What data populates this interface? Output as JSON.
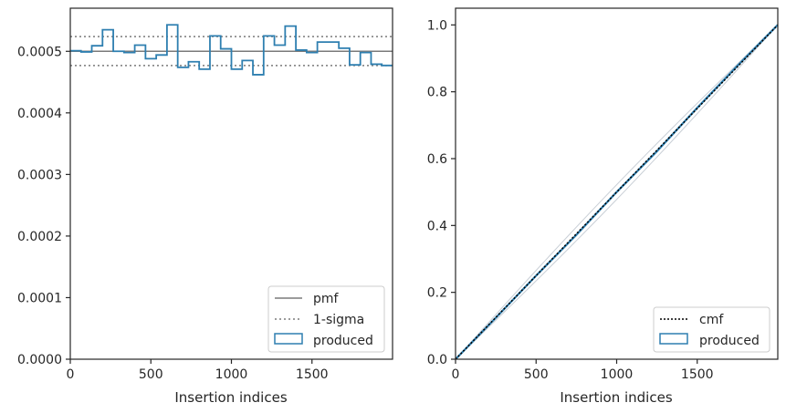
{
  "colors": {
    "produced": "#2e7fb0",
    "pmf": "#7a7a7a",
    "sigma": "#7a7a7a",
    "cmf": "#000000",
    "band": "#c9cfd6",
    "axes": "#262626"
  },
  "chart_data": [
    {
      "type": "histogram",
      "xlabel": "Insertion indices",
      "ylabel": "",
      "xlim": [
        0,
        2000
      ],
      "ylim": [
        0,
        0.00057
      ],
      "xticks": [
        0,
        500,
        1000,
        1500
      ],
      "xtick_labels": [
        "0",
        "500",
        "1000",
        "1500"
      ],
      "yticks": [
        0,
        0.0001,
        0.0002,
        0.0003,
        0.0004,
        0.0005
      ],
      "ytick_labels": [
        "0.0000",
        "0.0001",
        "0.0002",
        "0.0003",
        "0.0004",
        "0.0005"
      ],
      "bin_width": 66.67,
      "series": [
        {
          "name": "produced",
          "style": "step",
          "values": [
            0.000501,
            0.000499,
            0.000509,
            0.000535,
            0.0005,
            0.000498,
            0.00051,
            0.000488,
            0.000494,
            0.000543,
            0.000474,
            0.000483,
            0.000471,
            0.000525,
            0.000504,
            0.000471,
            0.000485,
            0.000462,
            0.000525,
            0.00051,
            0.000541,
            0.000502,
            0.000498,
            0.000515,
            0.000515,
            0.000505,
            0.000478,
            0.000498,
            0.000479,
            0.000477
          ]
        },
        {
          "name": "pmf",
          "style": "solid",
          "value": 0.0005
        },
        {
          "name": "1-sigma",
          "style": "dotted",
          "values": [
            0.000524,
            0.000477
          ]
        }
      ],
      "legend": {
        "position": "lower-right",
        "entries": [
          "pmf",
          "1-sigma",
          "produced"
        ]
      }
    },
    {
      "type": "line",
      "xlabel": "Insertion indices",
      "ylabel": "",
      "xlim": [
        0,
        2000
      ],
      "ylim": [
        0,
        1.05
      ],
      "xticks": [
        0,
        500,
        1000,
        1500
      ],
      "xtick_labels": [
        "0",
        "500",
        "1000",
        "1500"
      ],
      "yticks": [
        0,
        0.2,
        0.4,
        0.6,
        0.8,
        1.0
      ],
      "ytick_labels": [
        "0.0",
        "0.2",
        "0.4",
        "0.6",
        "0.8",
        "1.0"
      ],
      "series": [
        {
          "name": "cmf",
          "style": "dotted",
          "x": [
            0,
            2000
          ],
          "y": [
            0,
            1.0
          ]
        },
        {
          "name": "produced",
          "style": "step",
          "x": [
            0,
            250,
            500,
            750,
            1000,
            1250,
            1500,
            1750,
            2000
          ],
          "y": [
            0,
            0.124,
            0.25,
            0.372,
            0.5,
            0.622,
            0.752,
            0.878,
            1.0
          ]
        }
      ],
      "legend": {
        "position": "lower-right",
        "entries": [
          "cmf",
          "produced"
        ]
      }
    }
  ]
}
